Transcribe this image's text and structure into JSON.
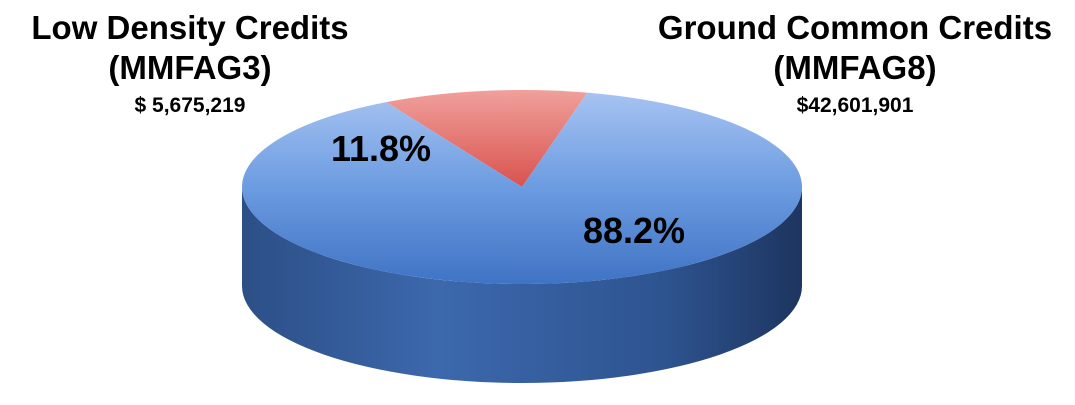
{
  "chart_data": {
    "type": "pie",
    "style": "3d",
    "slices": [
      {
        "name_line1": "Low Density Credits",
        "name_line2": "(MMFAG3)",
        "amount": "$ 5,675,219",
        "value": 5675219,
        "percent_label": "11.8%",
        "percent": 11.8,
        "color": "#e0504b"
      },
      {
        "name_line1": "Ground Common Credits",
        "name_line2": "(MMFAG8)",
        "amount": "$42,601,901",
        "value": 42601901,
        "percent_label": "88.2%",
        "percent": 88.2,
        "color": "#4f81d0"
      }
    ]
  }
}
